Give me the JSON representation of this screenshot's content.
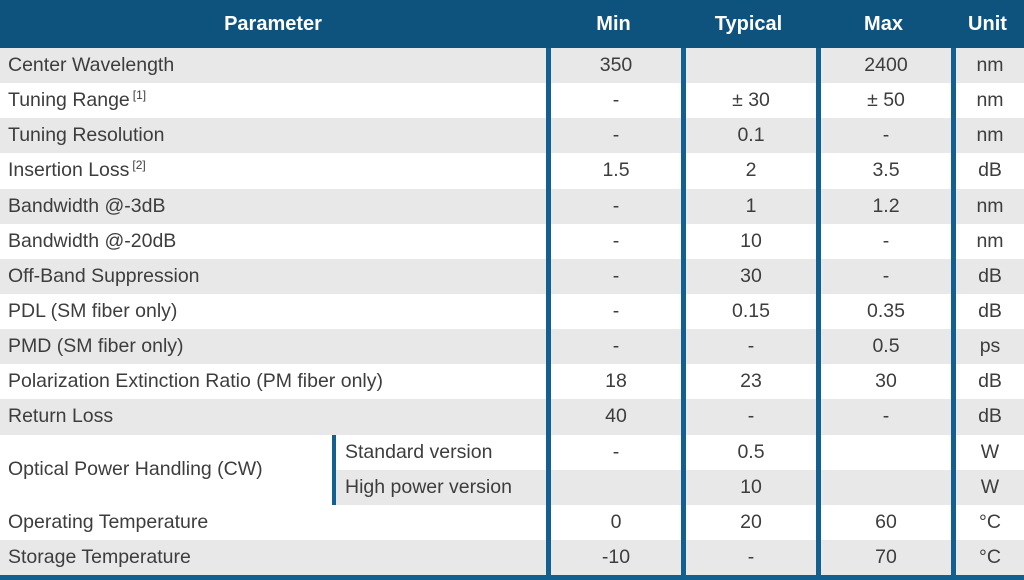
{
  "colors": {
    "header_bg": "#0e537d",
    "separator_blue": "#12608f",
    "row_gray": "#e8e8e8",
    "body_text": "#3d3d3d",
    "header_text": "#ffffff"
  },
  "header": {
    "parameter": "Parameter",
    "min": "Min",
    "typical": "Typical",
    "max": "Max",
    "unit": "Unit"
  },
  "rows": [
    {
      "param": "Center Wavelength",
      "min": "350",
      "typical": "",
      "max": "2400",
      "unit": "nm"
    },
    {
      "param": "Tuning Range",
      "sup": "[1]",
      "min": "-",
      "typical": "± 30",
      "max": "± 50",
      "unit": "nm"
    },
    {
      "param": "Tuning Resolution",
      "min": "-",
      "typical": "0.1",
      "max": "-",
      "unit": "nm"
    },
    {
      "param": "Insertion Loss",
      "sup": "[2]",
      "min": "1.5",
      "typical": "2",
      "max": "3.5",
      "unit": "dB"
    },
    {
      "param": "Bandwidth @-3dB",
      "min": "-",
      "typical": "1",
      "max": "1.2",
      "unit": "nm"
    },
    {
      "param": "Bandwidth @-20dB",
      "min": "-",
      "typical": "10",
      "max": "-",
      "unit": "nm"
    },
    {
      "param": "Off-Band Suppression",
      "min": "-",
      "typical": "30",
      "max": "-",
      "unit": "dB"
    },
    {
      "param": "PDL (SM fiber only)",
      "min": "-",
      "typical": "0.15",
      "max": "0.35",
      "unit": "dB"
    },
    {
      "param": "PMD (SM fiber only)",
      "min": "-",
      "typical": "-",
      "max": "0.5",
      "unit": "ps"
    },
    {
      "param": "Polarization Extinction Ratio (PM fiber only)",
      "min": "18",
      "typical": "23",
      "max": "30",
      "unit": "dB"
    },
    {
      "param": "Return Loss",
      "min": "40",
      "typical": "-",
      "max": "-",
      "unit": "dB"
    }
  ],
  "power_row": {
    "param": "Optical Power Handling (CW)",
    "sub_rows": [
      {
        "label": "Standard version",
        "min": "-",
        "typical": "0.5",
        "max": "",
        "unit": "W"
      },
      {
        "label": "High power version",
        "min": "",
        "typical": "10",
        "max": "",
        "unit": "W"
      }
    ]
  },
  "bottom_rows": [
    {
      "param": "Operating Temperature",
      "min": "0",
      "typical": "20",
      "max": "60",
      "unit": "°C"
    },
    {
      "param": "Storage Temperature",
      "min": "-10",
      "typical": "-",
      "max": "70",
      "unit": "°C"
    }
  ]
}
